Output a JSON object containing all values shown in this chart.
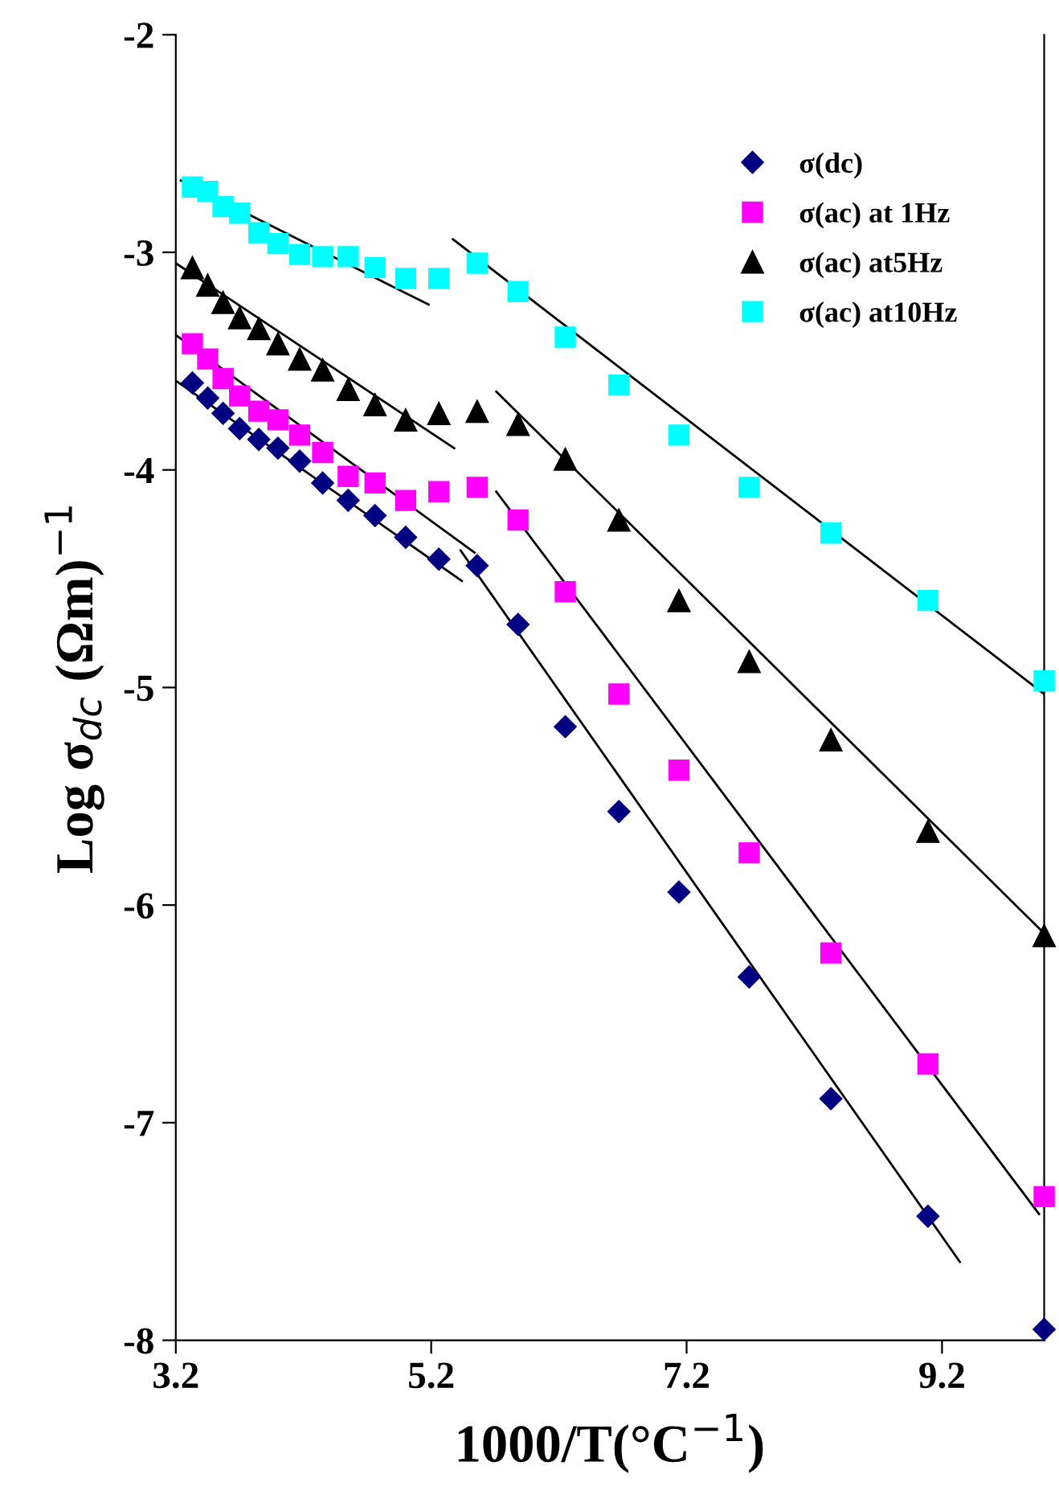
{
  "chart_data": {
    "type": "scatter",
    "xlabel": "1000/T(°C$^{−1}$)",
    "ylabel": "Log σ$_{dc}$ (Ωm)$^{−1}$",
    "xlim": [
      3.2,
      10.0
    ],
    "ylim": [
      -8,
      -2
    ],
    "xticks": [
      3.2,
      5.2,
      7.2,
      9.2
    ],
    "yticks": [
      -8,
      -7,
      -6,
      -5,
      -4,
      -3,
      -2
    ],
    "grid": false,
    "legend": "top right",
    "x": [
      3.33,
      3.45,
      3.57,
      3.7,
      3.85,
      4.0,
      4.17,
      4.35,
      4.55,
      4.76,
      5.0,
      5.26,
      5.56,
      5.88,
      6.25,
      6.67,
      7.14,
      7.69,
      8.33,
      9.09,
      10.0
    ],
    "series": [
      {
        "name": "σ(dc)",
        "color": "#000080",
        "marker": "diamond",
        "values": [
          -3.6,
          -3.67,
          -3.74,
          -3.81,
          -3.86,
          -3.9,
          -3.96,
          -4.06,
          -4.14,
          -4.21,
          -4.31,
          -4.41,
          -4.44,
          -4.71,
          -5.18,
          -5.57,
          -5.94,
          -6.33,
          -6.89,
          -7.43,
          -7.95
        ]
      },
      {
        "name": "σ(ac) at 1Hz",
        "color": "#ff00ff",
        "marker": "square",
        "values": [
          -3.42,
          -3.49,
          -3.58,
          -3.66,
          -3.73,
          -3.77,
          -3.84,
          -3.92,
          -4.03,
          -4.06,
          -4.14,
          -4.1,
          -4.08,
          -4.23,
          -4.56,
          -5.03,
          -5.38,
          -5.76,
          -6.22,
          -6.73,
          -7.34
        ]
      },
      {
        "name": "σ(ac) at5Hz",
        "color": "#000000",
        "marker": "triangle",
        "values": [
          -3.07,
          -3.15,
          -3.23,
          -3.3,
          -3.35,
          -3.42,
          -3.49,
          -3.54,
          -3.63,
          -3.7,
          -3.77,
          -3.74,
          -3.73,
          -3.79,
          -3.95,
          -4.23,
          -4.6,
          -4.88,
          -5.24,
          -5.66,
          -6.14
        ]
      },
      {
        "name": "σ(ac) at10Hz",
        "color": "#00ffff",
        "marker": "square",
        "values": [
          -2.7,
          -2.72,
          -2.79,
          -2.82,
          -2.91,
          -2.96,
          -3.01,
          -3.02,
          -3.02,
          -3.07,
          -3.12,
          -3.12,
          -3.05,
          -3.18,
          -3.39,
          -3.61,
          -3.84,
          -4.08,
          -4.29,
          -4.6,
          -4.97
        ]
      },
      {
        "type": "line",
        "color": "#000000",
        "x": [
          3.2,
          5.44
        ],
        "values": [
          -3.59,
          -4.51
        ]
      },
      {
        "type": "line",
        "color": "#000000",
        "x": [
          5.43,
          9.34
        ],
        "values": [
          -4.37,
          -7.64
        ]
      },
      {
        "type": "line",
        "color": "#000000",
        "x": [
          3.2,
          5.54
        ],
        "values": [
          -3.38,
          -4.38
        ]
      },
      {
        "type": "line",
        "color": "#000000",
        "x": [
          5.71,
          9.96
        ],
        "values": [
          -4.1,
          -7.42
        ]
      },
      {
        "type": "line",
        "color": "#000000",
        "x": [
          3.2,
          5.38
        ],
        "values": [
          -3.05,
          -3.9
        ]
      },
      {
        "type": "line",
        "color": "#000000",
        "x": [
          5.71,
          10.0
        ],
        "values": [
          -3.64,
          -6.13
        ]
      },
      {
        "type": "line",
        "color": "#000000",
        "x": [
          3.24,
          5.18
        ],
        "values": [
          -2.67,
          -3.24
        ]
      },
      {
        "type": "line",
        "color": "#000000",
        "x": [
          5.37,
          10.0
        ],
        "values": [
          -2.94,
          -5.03
        ]
      }
    ]
  }
}
